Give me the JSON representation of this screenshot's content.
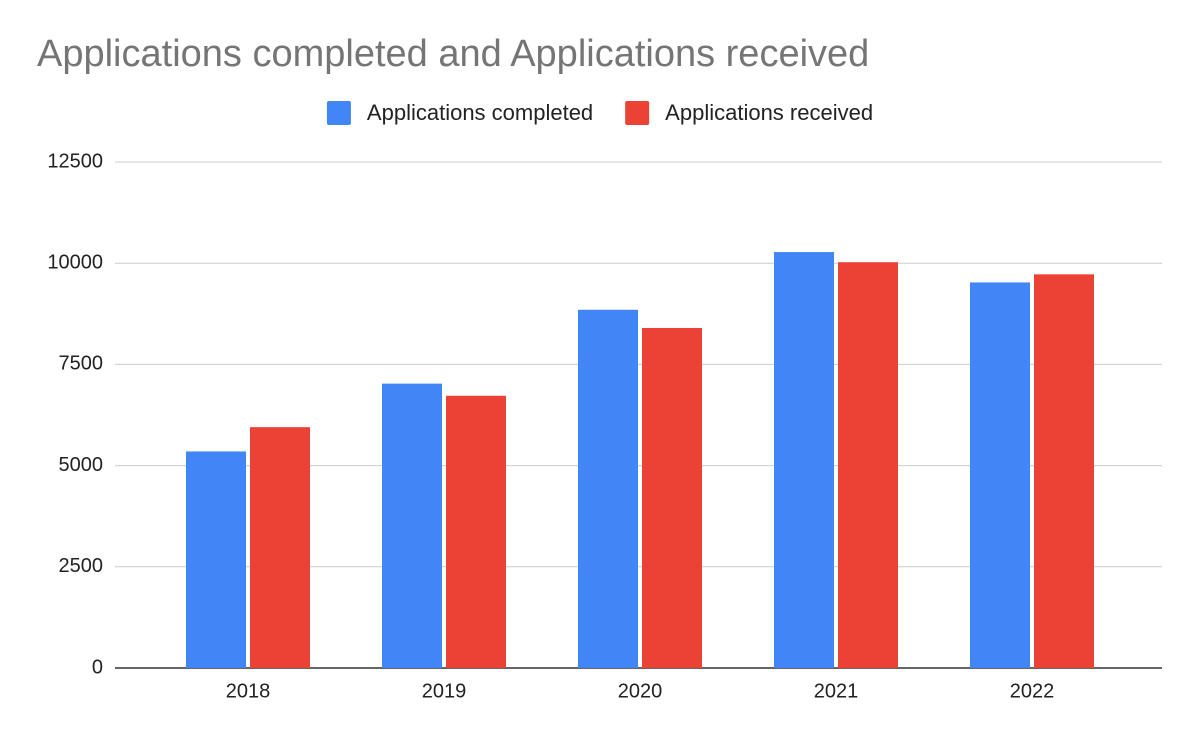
{
  "chart_data": {
    "type": "bar",
    "title": "Applications completed and Applications received",
    "categories": [
      "2018",
      "2019",
      "2020",
      "2021",
      "2022"
    ],
    "series": [
      {
        "name": "Applications completed",
        "color": "#4285f4",
        "values": [
          5350,
          7025,
          8850,
          10275,
          9525
        ]
      },
      {
        "name": "Applications received",
        "color": "#ea4335",
        "values": [
          5950,
          6725,
          8400,
          10025,
          9725
        ]
      }
    ],
    "ylim": [
      0,
      12500
    ],
    "yticks": [
      0,
      2500,
      5000,
      7500,
      10000,
      12500
    ],
    "grid": true,
    "legend": "top"
  }
}
